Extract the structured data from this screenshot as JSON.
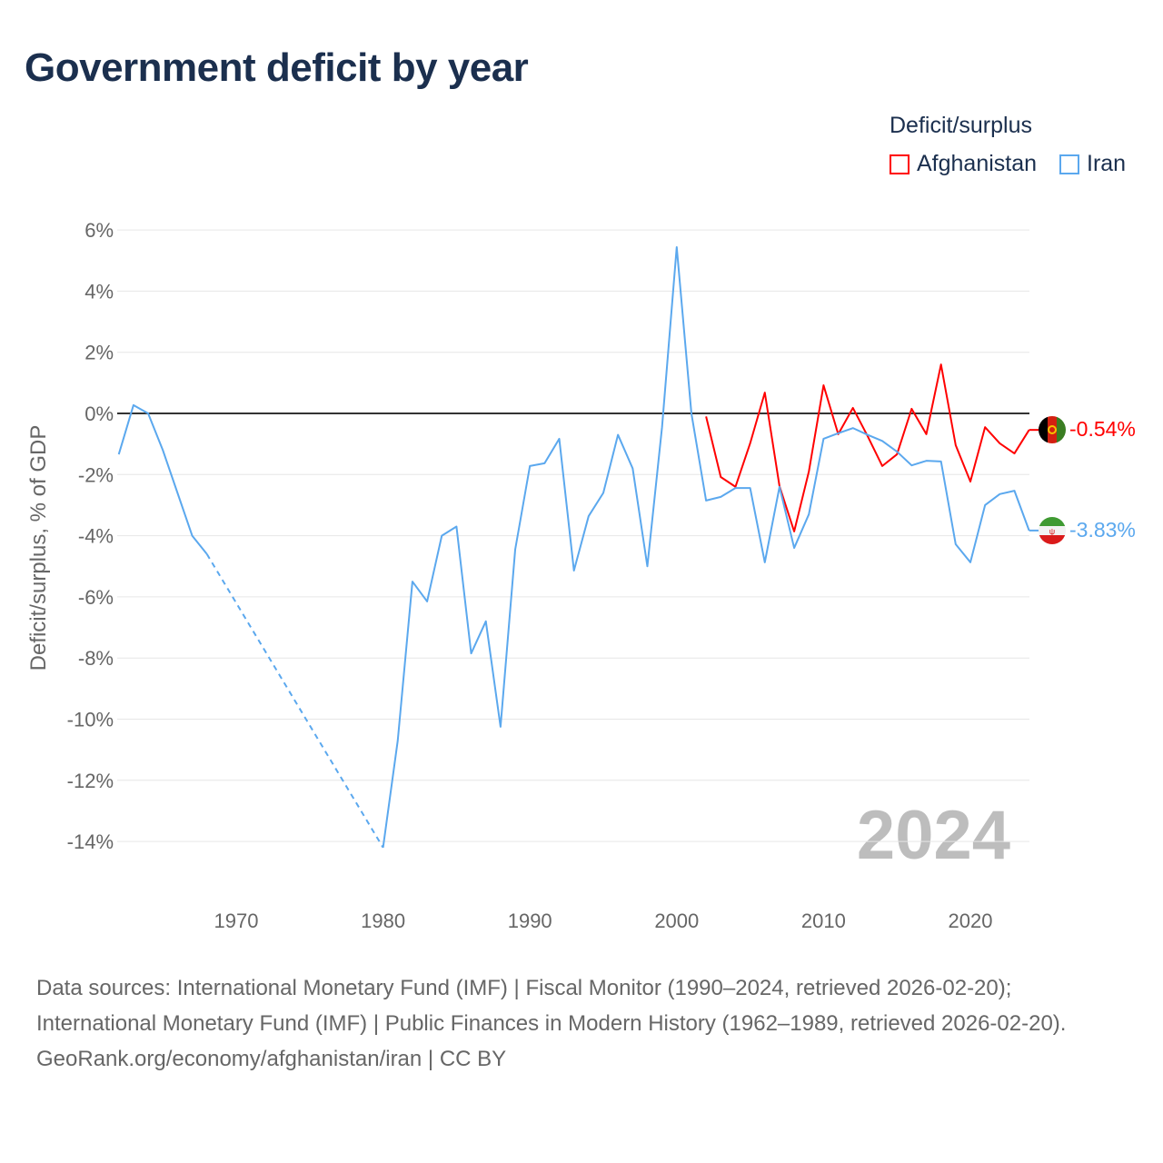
{
  "title": "Government deficit by year",
  "legend": {
    "title": "Deficit/surplus",
    "items": [
      {
        "label": "Afghanistan",
        "color": "#ff0000"
      },
      {
        "label": "Iran",
        "color": "#5ba8ee"
      }
    ]
  },
  "watermark_year": "2024",
  "end_labels": {
    "afghanistan": "-0.54%",
    "iran": "-3.83%"
  },
  "footer": {
    "sources": "Data sources: International Monetary Fund (IMF) | Fiscal Monitor (1990–2024, retrieved 2026-02-20); International Monetary Fund (IMF) | Public Finances in Modern History (1962–1989, retrieved 2026-02-20).",
    "credit": "GeoRank.org/economy/afghanistan/iran | CC BY"
  },
  "chart_data": {
    "type": "line",
    "title": "Government deficit by year",
    "xlabel": "",
    "ylabel": "Deficit/surplus, % of GDP",
    "xlim": [
      1962,
      2024
    ],
    "ylim": [
      -14,
      6
    ],
    "x_ticks": [
      1970,
      1980,
      1990,
      2000,
      2010,
      2020
    ],
    "y_ticks": [
      6,
      4,
      2,
      0,
      -2,
      -4,
      -6,
      -8,
      -10,
      -12,
      -14
    ],
    "y_tick_labels": [
      "6%",
      "4%",
      "2%",
      "0%",
      "-2%",
      "-4%",
      "-6%",
      "-8%",
      "-10%",
      "-12%",
      "-14%"
    ],
    "legend_position": "top-right",
    "series": [
      {
        "name": "Iran",
        "color": "#5ba8ee",
        "x": [
          1962,
          1963,
          1964,
          1965,
          1966,
          1967,
          1968,
          1980,
          1981,
          1982,
          1983,
          1984,
          1985,
          1986,
          1987,
          1988,
          1989,
          1990,
          1991,
          1992,
          1993,
          1994,
          1995,
          1996,
          1997,
          1998,
          1999,
          2000,
          2001,
          2002,
          2003,
          2004,
          2005,
          2006,
          2007,
          2008,
          2009,
          2010,
          2011,
          2012,
          2013,
          2014,
          2015,
          2016,
          2017,
          2018,
          2019,
          2020,
          2021,
          2022,
          2023,
          2024
        ],
        "values": [
          -1.34,
          0.27,
          0.0,
          -1.2,
          -2.6,
          -4.0,
          -4.6,
          -14.2,
          -10.7,
          -5.5,
          -6.15,
          -4.0,
          -3.7,
          -7.85,
          -6.8,
          -10.25,
          -4.45,
          -1.72,
          -1.63,
          -0.83,
          -5.14,
          -3.36,
          -2.6,
          -0.7,
          -1.8,
          -5.0,
          -0.45,
          5.44,
          0.0,
          -2.85,
          -2.73,
          -2.44,
          -2.44,
          -4.87,
          -2.4,
          -4.4,
          -3.3,
          -0.83,
          -0.65,
          -0.48,
          -0.7,
          -0.9,
          -1.25,
          -1.7,
          -1.55,
          -1.57,
          -4.28,
          -4.87,
          -3.0,
          -2.64,
          -2.53,
          -3.83
        ]
      },
      {
        "name": "Afghanistan",
        "color": "#ff0000",
        "x": [
          2002,
          2003,
          2004,
          2005,
          2006,
          2007,
          2008,
          2009,
          2010,
          2011,
          2012,
          2013,
          2014,
          2015,
          2016,
          2017,
          2018,
          2019,
          2020,
          2021,
          2022,
          2023,
          2024
        ],
        "values": [
          -0.1,
          -2.08,
          -2.4,
          -0.98,
          0.68,
          -2.38,
          -3.86,
          -1.9,
          0.92,
          -0.68,
          0.18,
          -0.74,
          -1.72,
          -1.34,
          0.15,
          -0.68,
          1.6,
          -1.04,
          -2.23,
          -0.45,
          -0.98,
          -1.31,
          -0.54
        ]
      }
    ]
  }
}
